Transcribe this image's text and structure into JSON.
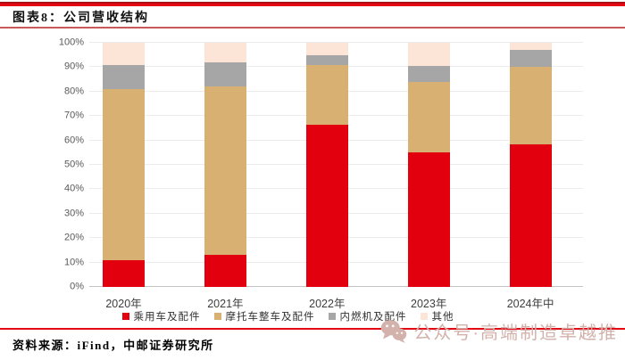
{
  "header": {
    "title": "图表8：公司营收结构"
  },
  "footer": {
    "source_label": "资料来源：iFind，中邮证券研究所"
  },
  "watermark": {
    "text": "公众号·高端制造卓越推",
    "icon": "wechat-icon"
  },
  "colors": {
    "header_rule_red": "#e30613",
    "footer_rule_red": "#e30613",
    "watermark_pink": "#d3b2ac",
    "gridline_gray": "#ececec"
  },
  "chart_data": {
    "type": "bar",
    "stacked": true,
    "unit": "percent",
    "categories": [
      "2020年",
      "2021年",
      "2022年",
      "2023年",
      "2024年中"
    ],
    "series": [
      {
        "name": "乘用车及配件",
        "color": "#e2000f",
        "values": [
          11,
          13,
          66.5,
          55,
          58.5
        ]
      },
      {
        "name": "摩托车整车及配件",
        "color": "#d8b172",
        "values": [
          70,
          69,
          24.5,
          29,
          31.5
        ]
      },
      {
        "name": "内燃机及配件",
        "color": "#a6a6a6",
        "values": [
          10,
          10,
          4,
          6.5,
          7
        ]
      },
      {
        "name": "其他",
        "color": "#fce4d6",
        "values": [
          9,
          8,
          5,
          9.5,
          3
        ]
      }
    ],
    "xlabel": "",
    "ylabel": "",
    "ylim": [
      0,
      100
    ],
    "yticks": [
      "0%",
      "10%",
      "20%",
      "30%",
      "40%",
      "50%",
      "60%",
      "70%",
      "80%",
      "90%",
      "100%"
    ],
    "grid": true,
    "legend_position": "bottom"
  }
}
